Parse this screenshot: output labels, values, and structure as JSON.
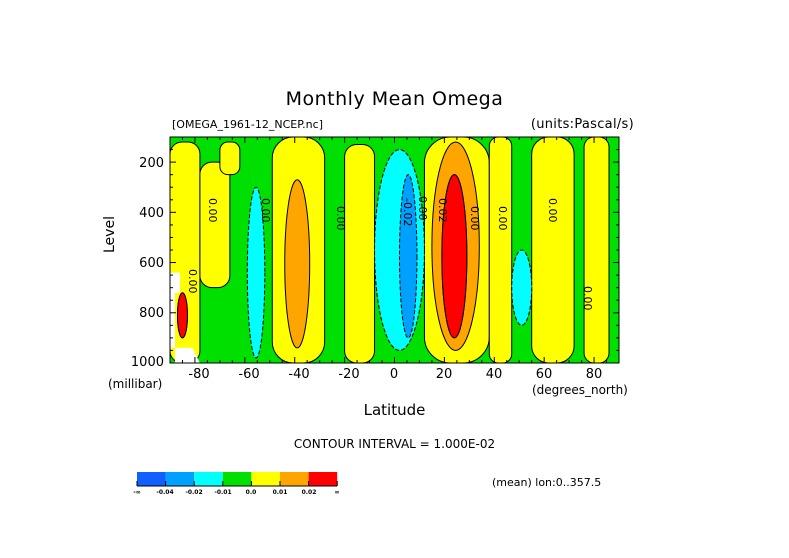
{
  "header": {
    "title": "Monthly Mean Omega",
    "dataset": "[OMEGA_1961-12_NCEP.nc]",
    "units": "(units:Pascal/s)"
  },
  "footer": {
    "contour_interval": "CONTOUR INTERVAL = 1.000E-02",
    "mean_note": "(mean) lon:0..357.5"
  },
  "chart_data": {
    "type": "heatmap",
    "subtype": "filled-contour",
    "title": "Monthly Mean Omega",
    "subtitle_left": "[OMEGA_1961-12_NCEP.nc]",
    "subtitle_right": "(units:Pascal/s)",
    "xlabel": "Latitude",
    "xunits": "(degrees_north)",
    "ylabel": "Level",
    "yunits": "(millibar)",
    "xlim": [
      -90,
      90
    ],
    "ylim": [
      1000,
      100
    ],
    "y_inverted": true,
    "x_ticks": [
      -80,
      -60,
      -40,
      -20,
      0,
      20,
      40,
      60,
      80
    ],
    "x_tick_labels": [
      "-80",
      "-60",
      "-40",
      "-20",
      "0",
      "20",
      "40",
      "60",
      "80"
    ],
    "y_ticks": [
      200,
      400,
      600,
      800,
      1000
    ],
    "y_tick_labels": [
      "200",
      "400",
      "600",
      "800",
      "1000"
    ],
    "contour_interval": 0.01,
    "contour_labels": [
      {
        "value": "0.00",
        "lat": -73,
        "level": 400
      },
      {
        "value": "0.00",
        "lat": -52,
        "level": 400
      },
      {
        "value": "0.00",
        "lat": -22,
        "level": 430
      },
      {
        "value": "0.00",
        "lat": -81,
        "level": 680
      },
      {
        "value": "-0.02",
        "lat": 5,
        "level": 400
      },
      {
        "value": "0.00",
        "lat": 11,
        "level": 390
      },
      {
        "value": "0.02",
        "lat": 19,
        "level": 400
      },
      {
        "value": "0.00",
        "lat": 32,
        "level": 430
      },
      {
        "value": "0.00",
        "lat": 43,
        "level": 430
      },
      {
        "value": "0.00",
        "lat": 63,
        "level": 400
      },
      {
        "value": "0.00",
        "lat": 77,
        "level": 750
      }
    ],
    "regions": [
      {
        "band": "-0.04..-0.02",
        "lat": [
          2,
          9
        ],
        "level": [
          250,
          900
        ],
        "color": "#00a0ff"
      },
      {
        "band": "-0.02..-0.01",
        "lat": [
          -8,
          12
        ],
        "level": [
          150,
          950
        ],
        "color": "#00ffff"
      },
      {
        "band": "-0.02..-0.01",
        "lat": [
          -59,
          -52
        ],
        "level": [
          300,
          980
        ],
        "color": "#00ffff"
      },
      {
        "band": "-0.02..-0.01",
        "lat": [
          47,
          55
        ],
        "level": [
          550,
          850
        ],
        "color": "#00ffff"
      },
      {
        "band": "0.01..0.02",
        "lat": [
          -44,
          -34
        ],
        "level": [
          270,
          940
        ],
        "color": "#ffa500"
      },
      {
        "band": "0.01..0.02",
        "lat": [
          15,
          34
        ],
        "level": [
          120,
          950
        ],
        "color": "#ffa500"
      },
      {
        "band": "0.02..inf",
        "lat": [
          19,
          29
        ],
        "level": [
          250,
          900
        ],
        "color": "#ff0000"
      },
      {
        "band": "0.02..inf",
        "lat": [
          -87,
          -83
        ],
        "level": [
          720,
          900
        ],
        "color": "#ff0000"
      }
    ],
    "legend": {
      "position": "bottom-left",
      "labels": [
        "-∞",
        "-0.04",
        "-0.02",
        "-0.01",
        "0.0",
        "0.01",
        "0.02",
        "∞"
      ],
      "colors": [
        "#1060ff",
        "#00a0ff",
        "#00ffff",
        "#00e000",
        "#ffff00",
        "#ffa500",
        "#ff0000"
      ]
    }
  }
}
